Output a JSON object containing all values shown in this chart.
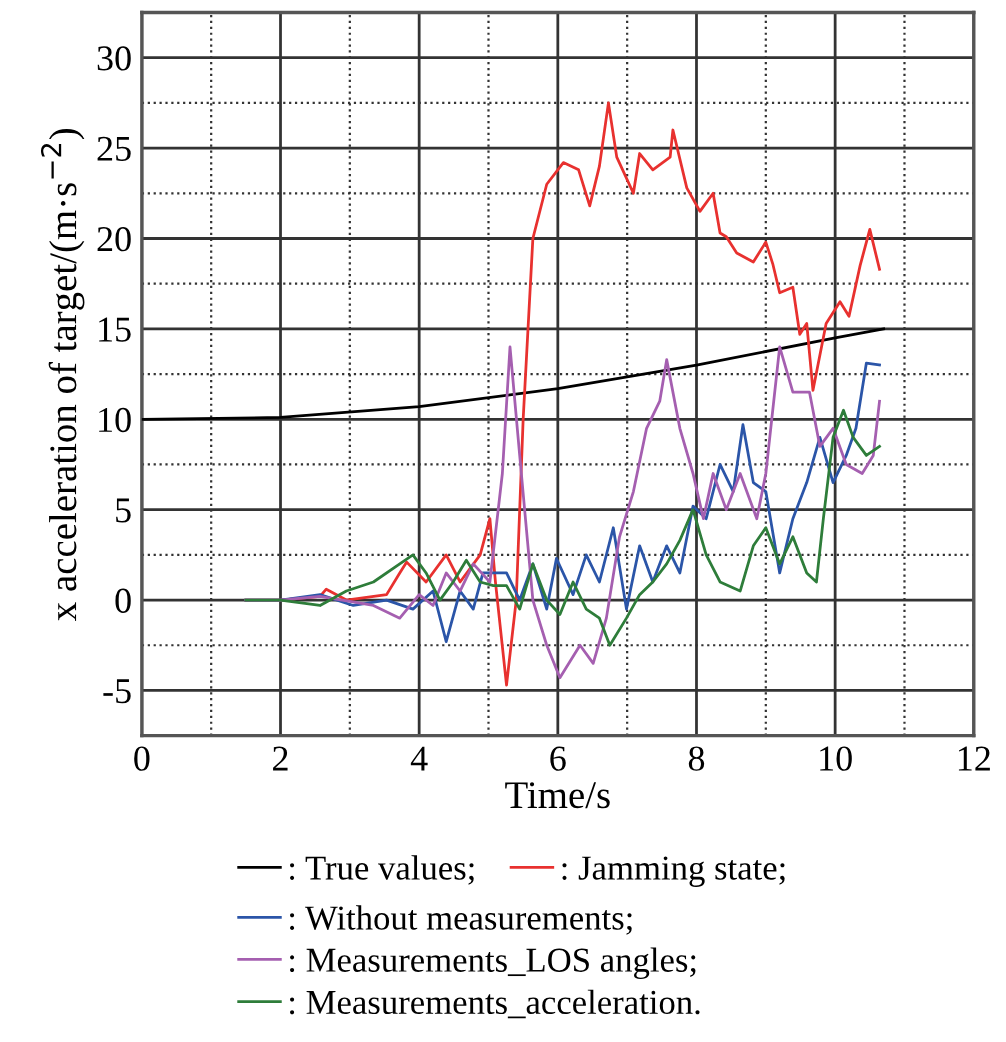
{
  "chart_data": {
    "type": "line",
    "xlabel": "Time/s",
    "ylabel": "x acceleration of target/(m·s$^{−2}$)",
    "xlim": [
      0,
      12
    ],
    "ylim": [
      -7.5,
      32.5
    ],
    "xticks": [
      0,
      {
        "value": 1,
        "label": null
      },
      2,
      {
        "value": 3,
        "label": null
      },
      4,
      {
        "value": 5,
        "label": null
      },
      6,
      {
        "value": 7,
        "label": null
      },
      8,
      {
        "value": 9,
        "label": null
      },
      10,
      {
        "value": 11,
        "label": null
      },
      12
    ],
    "yticks": [
      {
        "value": -7.5,
        "label": null
      },
      -5,
      {
        "value": -2.5,
        "label": null
      },
      0,
      {
        "value": 2.5,
        "label": null
      },
      5,
      {
        "value": 7.5,
        "label": null
      },
      10,
      {
        "value": 12.5,
        "label": null
      },
      15,
      {
        "value": 17.5,
        "label": null
      },
      20,
      {
        "value": 22.5,
        "label": null
      },
      25,
      {
        "value": 27.5,
        "label": null
      },
      30,
      {
        "value": 32.5,
        "label": null
      }
    ],
    "grid": true,
    "legend": "bottom",
    "line_style": "solid",
    "marker": "none",
    "series": [
      {
        "name": ": True values;",
        "color": "#000000",
        "x": [
          0,
          2,
          4,
          6,
          8,
          10,
          10.7
        ],
        "values": [
          10,
          10.1,
          10.7,
          11.7,
          13,
          14.5,
          15
        ]
      },
      {
        "name": ": Jamming state;",
        "color": "#e8312f",
        "x": [
          1.5,
          2.0,
          2.57,
          2.66,
          2.95,
          3.53,
          3.72,
          3.82,
          4.1,
          4.39,
          4.59,
          4.88,
          5.02,
          5.1,
          5.26,
          5.4,
          5.5,
          5.64,
          5.84,
          6.08,
          6.3,
          6.46,
          6.6,
          6.73,
          6.85,
          7.09,
          7.18,
          7.37,
          7.62,
          7.66,
          7.86,
          8.05,
          8.24,
          8.34,
          8.43,
          8.58,
          8.82,
          9.0,
          9.1,
          9.2,
          9.39,
          9.49,
          9.59,
          9.68,
          9.87,
          10.07,
          10.2,
          10.36,
          10.5,
          10.64
        ],
        "values": [
          0,
          0,
          0.2,
          0.6,
          0,
          0.3,
          1.5,
          2.1,
          1.0,
          2.5,
          1.0,
          2.5,
          4.5,
          1,
          -4.7,
          0,
          10,
          20,
          23,
          24.2,
          23.8,
          21.8,
          24,
          27.5,
          24.5,
          22.5,
          24.7,
          23.8,
          24.5,
          26,
          22.8,
          21.5,
          22.5,
          20.3,
          20.1,
          19.2,
          18.7,
          19.8,
          18.6,
          17,
          17.3,
          14.7,
          15.3,
          11.6,
          15.3,
          16.5,
          15.7,
          18.5,
          20.5,
          18.3
        ]
      },
      {
        "name": ": Without measurements;",
        "color": "#2b55a8",
        "x": [
          1.5,
          2.0,
          2.57,
          3.05,
          3.53,
          3.91,
          4.2,
          4.39,
          4.59,
          4.78,
          4.92,
          5.26,
          5.45,
          5.64,
          5.84,
          5.98,
          6.22,
          6.41,
          6.6,
          6.8,
          6.99,
          7.18,
          7.37,
          7.57,
          7.76,
          7.95,
          8.14,
          8.34,
          8.53,
          8.67,
          8.82,
          9.0,
          9.2,
          9.39,
          9.59,
          9.78,
          9.97,
          10.16,
          10.3,
          10.45,
          10.64
        ],
        "values": [
          0,
          0,
          0.3,
          -0.3,
          0,
          -0.5,
          0.5,
          -2.3,
          0.5,
          -0.5,
          1.5,
          1.5,
          0,
          2,
          -0.5,
          2.3,
          0.3,
          2.5,
          1,
          4,
          -0.5,
          3,
          1,
          3,
          1.5,
          5.2,
          4.5,
          7.5,
          6,
          9.7,
          6.5,
          6,
          1.5,
          4.5,
          6.5,
          9,
          6.5,
          8,
          9.5,
          13.1,
          13
        ]
      },
      {
        "name": ": Measurements_LOS angles;",
        "color": "#a55fb0",
        "x": [
          1.5,
          2.0,
          2.57,
          3.34,
          3.72,
          4.0,
          4.2,
          4.39,
          4.59,
          4.78,
          5.02,
          5.2,
          5.31,
          5.45,
          5.64,
          5.84,
          6.03,
          6.32,
          6.51,
          6.7,
          6.89,
          7.09,
          7.28,
          7.47,
          7.57,
          7.76,
          7.95,
          8.1,
          8.24,
          8.43,
          8.63,
          8.87,
          9.0,
          9.2,
          9.39,
          9.63,
          9.78,
          9.97,
          10.16,
          10.39,
          10.55,
          10.64
        ],
        "values": [
          0,
          0,
          0.2,
          -0.3,
          -1,
          0.3,
          -0.3,
          1.5,
          0.5,
          2,
          1,
          7,
          14,
          8,
          0,
          -2.5,
          -4.3,
          -2.5,
          -3.5,
          -1,
          3.5,
          6,
          9.5,
          11,
          13.3,
          9.5,
          7,
          4.5,
          7,
          5,
          7,
          4.5,
          7,
          14,
          11.5,
          11.5,
          8.5,
          9.5,
          7.5,
          7,
          8,
          11
        ]
      },
      {
        "name": ": Measurements_acceleration.",
        "color": "#2e7d3a",
        "x": [
          1.5,
          2.0,
          2.57,
          2.95,
          3.34,
          3.72,
          3.91,
          4.1,
          4.3,
          4.49,
          4.68,
          4.88,
          5.07,
          5.26,
          5.45,
          5.64,
          5.84,
          6.03,
          6.22,
          6.41,
          6.6,
          6.75,
          6.99,
          7.18,
          7.37,
          7.57,
          7.76,
          7.95,
          8.14,
          8.34,
          8.63,
          8.82,
          9.0,
          9.2,
          9.39,
          9.59,
          9.73,
          9.83,
          9.97,
          10.12,
          10.26,
          10.45,
          10.64
        ],
        "values": [
          0,
          0,
          -0.3,
          0.5,
          1,
          2,
          2.5,
          1.5,
          0,
          1,
          2.2,
          1,
          0.8,
          0.8,
          -0.5,
          2,
          0,
          -0.8,
          1,
          -0.5,
          -1,
          -2.5,
          -1,
          0.3,
          1,
          2,
          3.3,
          5,
          2.5,
          1,
          0.5,
          3,
          4,
          2,
          3.5,
          1.5,
          1,
          4.5,
          9,
          10.5,
          9,
          8,
          8.5
        ]
      }
    ]
  }
}
